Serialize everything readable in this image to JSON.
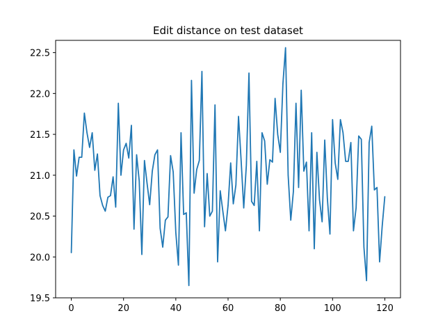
{
  "chart_data": {
    "type": "line",
    "title": "Edit distance on test dataset",
    "xlabel": "",
    "ylabel": "",
    "xlim": [
      -6,
      126
    ],
    "ylim": [
      19.5,
      22.65
    ],
    "xticks": [
      0,
      20,
      40,
      60,
      80,
      100,
      120
    ],
    "yticks": [
      19.5,
      20.0,
      20.5,
      21.0,
      21.5,
      22.0,
      22.5
    ],
    "ytick_labels": [
      "19.5",
      "20.0",
      "20.5",
      "21.0",
      "21.5",
      "22.0",
      "22.5"
    ],
    "grid": false,
    "legend": "none",
    "color": "#1f77b4",
    "series": [
      {
        "x": [
          0,
          1,
          2,
          3,
          4,
          5,
          6,
          7,
          8,
          9,
          10,
          11,
          12,
          13,
          14,
          15,
          16,
          17,
          18,
          19,
          20,
          21,
          22,
          23,
          24,
          25,
          26,
          27,
          28,
          29,
          30,
          31,
          32,
          33,
          34,
          35,
          36,
          37,
          38,
          39,
          40,
          41,
          42,
          43,
          44,
          45,
          46,
          47,
          48,
          49,
          50,
          51,
          52,
          53,
          54,
          55,
          56,
          57,
          58,
          59,
          60,
          61,
          62,
          63,
          64,
          65,
          66,
          67,
          68,
          69,
          70,
          71,
          72,
          73,
          74,
          75,
          76,
          77,
          78,
          79,
          80,
          81,
          82,
          83,
          84,
          85,
          86,
          87,
          88,
          89,
          90,
          91,
          92,
          93,
          94,
          95,
          96,
          97,
          98,
          99,
          100,
          101,
          102,
          103,
          104,
          105,
          106,
          107,
          108,
          109,
          110,
          111,
          112,
          113,
          114,
          115,
          116,
          117,
          118,
          119,
          120
        ],
        "values": [
          20.05,
          21.31,
          20.99,
          21.22,
          21.22,
          21.76,
          21.52,
          21.34,
          21.52,
          21.06,
          21.26,
          20.75,
          20.63,
          20.56,
          20.73,
          20.75,
          20.98,
          20.61,
          21.88,
          21.0,
          21.31,
          21.39,
          21.21,
          21.61,
          20.34,
          21.25,
          20.93,
          20.03,
          21.18,
          20.9,
          20.64,
          21.05,
          21.25,
          21.31,
          20.35,
          20.12,
          20.45,
          20.49,
          21.24,
          21.04,
          20.3,
          19.9,
          21.52,
          20.52,
          20.54,
          19.65,
          22.16,
          20.78,
          21.07,
          21.18,
          22.27,
          20.37,
          21.02,
          20.5,
          20.56,
          21.86,
          19.94,
          20.81,
          20.56,
          20.32,
          20.63,
          21.15,
          20.65,
          20.88,
          21.72,
          21.18,
          20.6,
          21.12,
          22.25,
          20.68,
          20.63,
          21.17,
          20.32,
          21.52,
          21.42,
          20.89,
          21.19,
          21.16,
          21.94,
          21.5,
          21.28,
          22.12,
          22.56,
          21.0,
          20.45,
          20.8,
          21.88,
          20.85,
          22.04,
          21.05,
          21.16,
          20.32,
          21.52,
          20.1,
          21.28,
          20.7,
          20.43,
          21.43,
          20.72,
          20.28,
          21.68,
          21.15,
          20.95,
          21.68,
          21.52,
          21.17,
          21.17,
          21.4,
          20.32,
          20.6,
          21.48,
          21.44,
          20.12,
          19.71,
          21.4,
          21.6,
          20.82,
          20.85,
          19.94,
          20.38,
          20.74
        ]
      }
    ]
  }
}
